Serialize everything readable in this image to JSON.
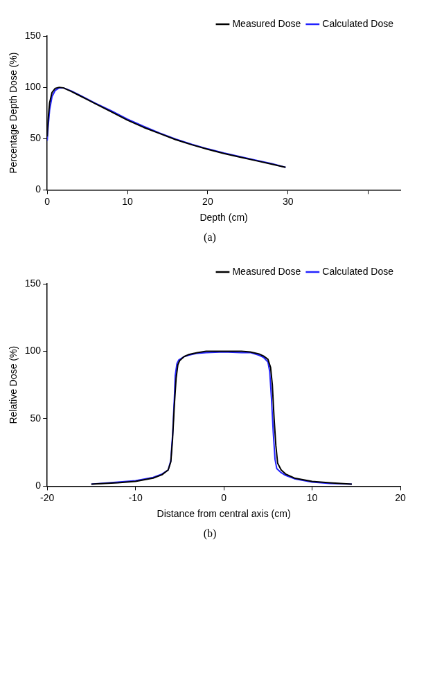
{
  "chart_data": [
    {
      "type": "line",
      "xlabel": "Depth (cm)",
      "ylabel": "Percentage Depth Dose (%)",
      "xlim": [
        0,
        44
      ],
      "xticks": [
        0,
        10,
        20,
        30,
        {
          "value": 40,
          "label": null
        }
      ],
      "ylim": [
        0,
        150
      ],
      "yticks": [
        0,
        50,
        100,
        150
      ],
      "grid": false,
      "legend": "top right",
      "marker": "none",
      "line_style": "solid",
      "annotations": [
        "(a)"
      ],
      "series": [
        {
          "name": "Measured Dose",
          "color": "#000000",
          "x": [
            0,
            0.1,
            0.3,
            0.6,
            1.0,
            1.5,
            2,
            3,
            4,
            5,
            6,
            8,
            10,
            12,
            14,
            16,
            18,
            20,
            22,
            24,
            26,
            28,
            29.7
          ],
          "values": [
            52,
            68,
            85,
            95,
            99,
            100,
            99.5,
            96,
            92,
            88,
            84,
            76,
            68,
            61,
            55,
            49,
            44,
            39.5,
            35.5,
            32,
            28.5,
            25,
            22
          ]
        },
        {
          "name": "Calculated Dose",
          "color": "#2222ff",
          "x": [
            0,
            0.1,
            0.3,
            0.6,
            1.0,
            1.5,
            2,
            3,
            4,
            5,
            6,
            8,
            10,
            12,
            14,
            16,
            18,
            20,
            22,
            24,
            26,
            28,
            29.7
          ],
          "values": [
            48,
            60,
            78,
            91,
            97,
            99.5,
            99.5,
            96.5,
            92.5,
            88.5,
            84.5,
            77,
            69,
            62,
            55.5,
            49.5,
            44.5,
            40,
            36,
            32.5,
            29,
            25.5,
            22
          ]
        }
      ]
    },
    {
      "type": "line",
      "xlabel": "Distance from central axis (cm)",
      "ylabel": "Relative Dose (%)",
      "xlim": [
        -20,
        20
      ],
      "xticks": [
        -20,
        -10,
        0,
        10,
        20
      ],
      "ylim": [
        0,
        150
      ],
      "yticks": [
        0,
        50,
        100,
        150
      ],
      "grid": false,
      "legend": "top right",
      "marker": "none",
      "line_style": "solid",
      "annotations": [
        "(b)"
      ],
      "series": [
        {
          "name": "Measured Dose",
          "color": "#000000",
          "x": [
            -15,
            -12,
            -10,
            -8,
            -7,
            -6.3,
            -6,
            -5.8,
            -5.6,
            -5.4,
            -5.2,
            -5,
            -4.5,
            -4,
            -3,
            -2,
            0,
            2,
            3,
            4,
            4.5,
            5,
            5.3,
            5.5,
            5.7,
            5.9,
            6.1,
            6.5,
            7,
            8,
            10,
            12,
            14.5
          ],
          "values": [
            1.5,
            2.5,
            3.5,
            6,
            8.5,
            12,
            18,
            35,
            60,
            80,
            90,
            93,
            96,
            97.5,
            99,
            100,
            100,
            100,
            99.5,
            98,
            96.5,
            94,
            88,
            75,
            50,
            30,
            17,
            12,
            9,
            6,
            3.5,
            2.5,
            1.5
          ]
        },
        {
          "name": "Calculated Dose",
          "color": "#2222ff",
          "x": [
            -15,
            -12,
            -10,
            -8,
            -7,
            -6.3,
            -6,
            -5.8,
            -5.6,
            -5.5,
            -5.3,
            -5.1,
            -4.5,
            -4,
            -3,
            -2,
            0,
            2,
            3,
            4,
            4.5,
            5,
            5.2,
            5.4,
            5.6,
            5.8,
            6,
            6.5,
            7,
            8,
            10,
            12,
            14.5
          ],
          "values": [
            1.5,
            3,
            4,
            6.5,
            9,
            12,
            19,
            38,
            65,
            82,
            91,
            93.5,
            96,
            97,
            98.5,
            99,
            99.5,
            99,
            99,
            97,
            95.5,
            92,
            85,
            65,
            40,
            20,
            13,
            10,
            8,
            5.5,
            3,
            2,
            1.5
          ]
        }
      ]
    }
  ]
}
